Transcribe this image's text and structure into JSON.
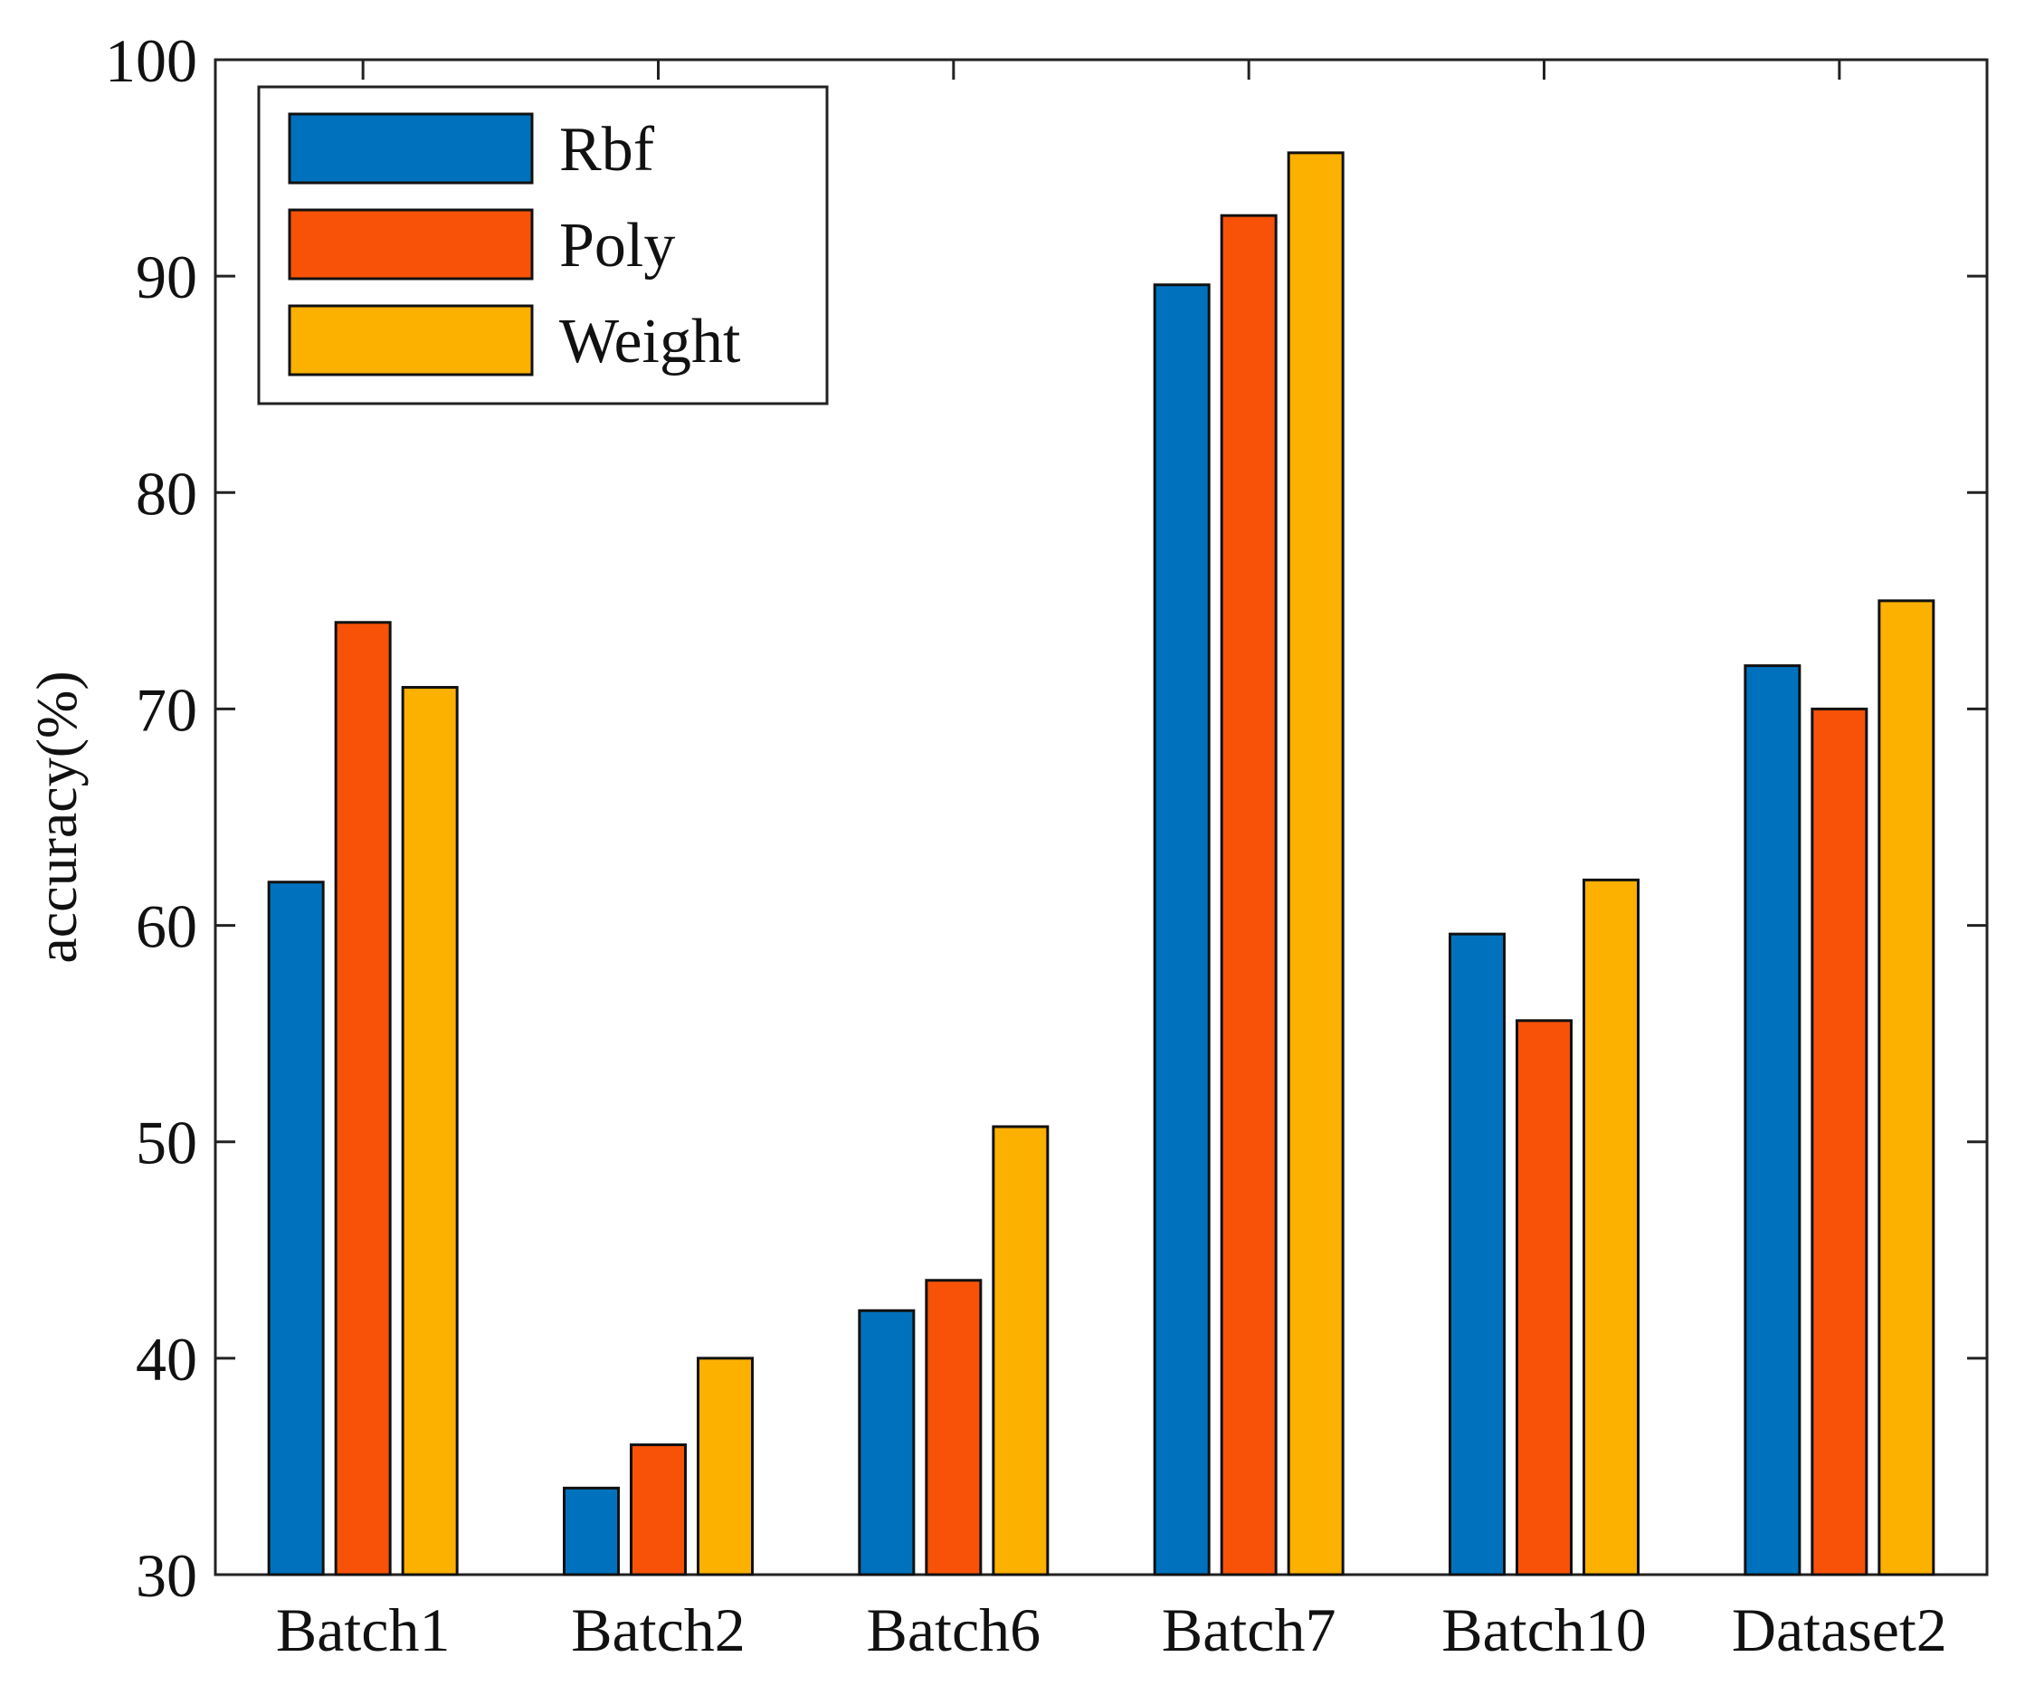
{
  "chart_data": {
    "type": "bar",
    "title": "",
    "xlabel": "",
    "ylabel": "accuracy(%)",
    "ylim": [
      30,
      100
    ],
    "yticks": [
      30,
      40,
      50,
      60,
      70,
      80,
      90,
      100
    ],
    "grid": false,
    "legend_position": "top-left",
    "categories": [
      "Batch1",
      "Batch2",
      "Batch6",
      "Batch7",
      "Batch10",
      "Dataset2"
    ],
    "series": [
      {
        "name": "Rbf",
        "color": "#0072BD",
        "values": [
          62,
          34,
          42.2,
          89.6,
          59.6,
          72
        ]
      },
      {
        "name": "Poly",
        "color": "#F75208",
        "values": [
          74,
          36,
          43.6,
          92.8,
          55.6,
          70
        ]
      },
      {
        "name": "Weight",
        "color": "#FCB000",
        "values": [
          71,
          40,
          50.7,
          95.7,
          62.1,
          75
        ]
      }
    ]
  }
}
